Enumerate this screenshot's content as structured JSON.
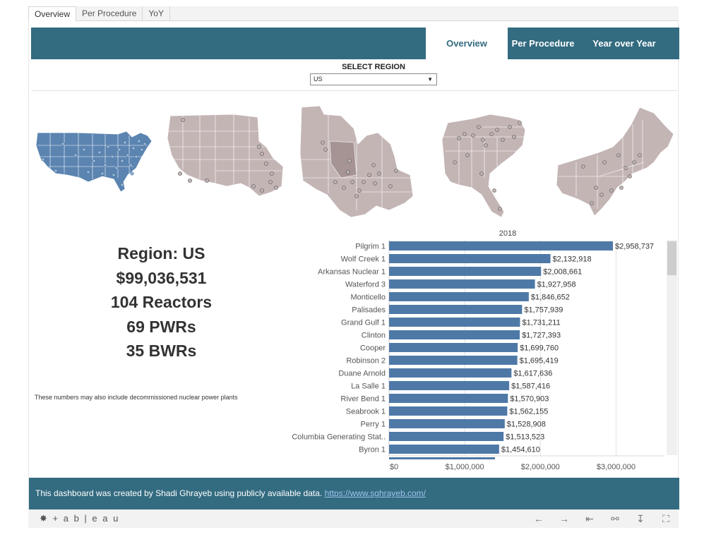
{
  "sheet_tabs": [
    {
      "label": "Overview"
    },
    {
      "label": "Per Procedure"
    },
    {
      "label": "YoY"
    }
  ],
  "nav": {
    "overview": "Overview",
    "per_procedure": "Per Procedure",
    "year_over_year": "Year over Year"
  },
  "region_filter": {
    "label": "SELECT REGION",
    "selected": "US"
  },
  "maps": [
    {
      "name": "US",
      "selected": true
    },
    {
      "name": "West",
      "selected": false
    },
    {
      "name": "Midwest",
      "selected": false
    },
    {
      "name": "Southeast",
      "selected": false
    },
    {
      "name": "Northeast",
      "selected": false
    }
  ],
  "summary": {
    "region": "Region: US",
    "total": "$99,036,531",
    "reactors": "104 Reactors",
    "pwrs": "69 PWRs",
    "bwrs": "35 BWRs",
    "note": "These numbers may also include decommissioned nuclear power plants"
  },
  "chart_data": {
    "type": "bar",
    "orientation": "horizontal",
    "title": "2018",
    "categories": [
      "Pilgrim 1",
      "Wolf Creek 1",
      "Arkansas Nuclear 1",
      "Waterford 3",
      "Monticello",
      "Palisades",
      "Grand Gulf 1",
      "Clinton",
      "Cooper",
      "Robinson 2",
      "Duane Arnold",
      "La Salle 1",
      "River Bend 1",
      "Seabrook 1",
      "Perry 1",
      "Columbia Generating Stat..",
      "Byron 1"
    ],
    "values": [
      2958737,
      2132918,
      2008661,
      1927958,
      1846652,
      1757939,
      1731211,
      1727393,
      1699760,
      1695419,
      1617636,
      1587416,
      1570903,
      1562155,
      1528908,
      1513523,
      1454610
    ],
    "value_labels": [
      "$2,958,737",
      "$2,132,918",
      "$2,008,661",
      "$1,927,958",
      "$1,846,652",
      "$1,757,939",
      "$1,731,211",
      "$1,727,393",
      "$1,699,760",
      "$1,695,419",
      "$1,617,636",
      "$1,587,416",
      "$1,570,903",
      "$1,562,155",
      "$1,528,908",
      "$1,513,523",
      "$1,454,610"
    ],
    "xlim": [
      0,
      3500000
    ],
    "x_ticks": [
      0,
      1000000,
      2000000,
      3000000
    ],
    "x_tick_labels": [
      "$0",
      "$1,000,000",
      "$2,000,000",
      "$3,000,000"
    ],
    "grid": true,
    "bar_color": "#4e79a7"
  },
  "footer": {
    "text": "This  dashboard was created by Shadi Ghrayeb using publicly available data.",
    "link": "https://www.sghrayeb.com/"
  },
  "toolbar": {
    "logo": "+ a b | e a u"
  },
  "colors": {
    "nav_bg": "#336b80",
    "map_selected": "#5b84b1",
    "map_unselected": "#c4b5b5",
    "bar": "#4e79a7"
  }
}
